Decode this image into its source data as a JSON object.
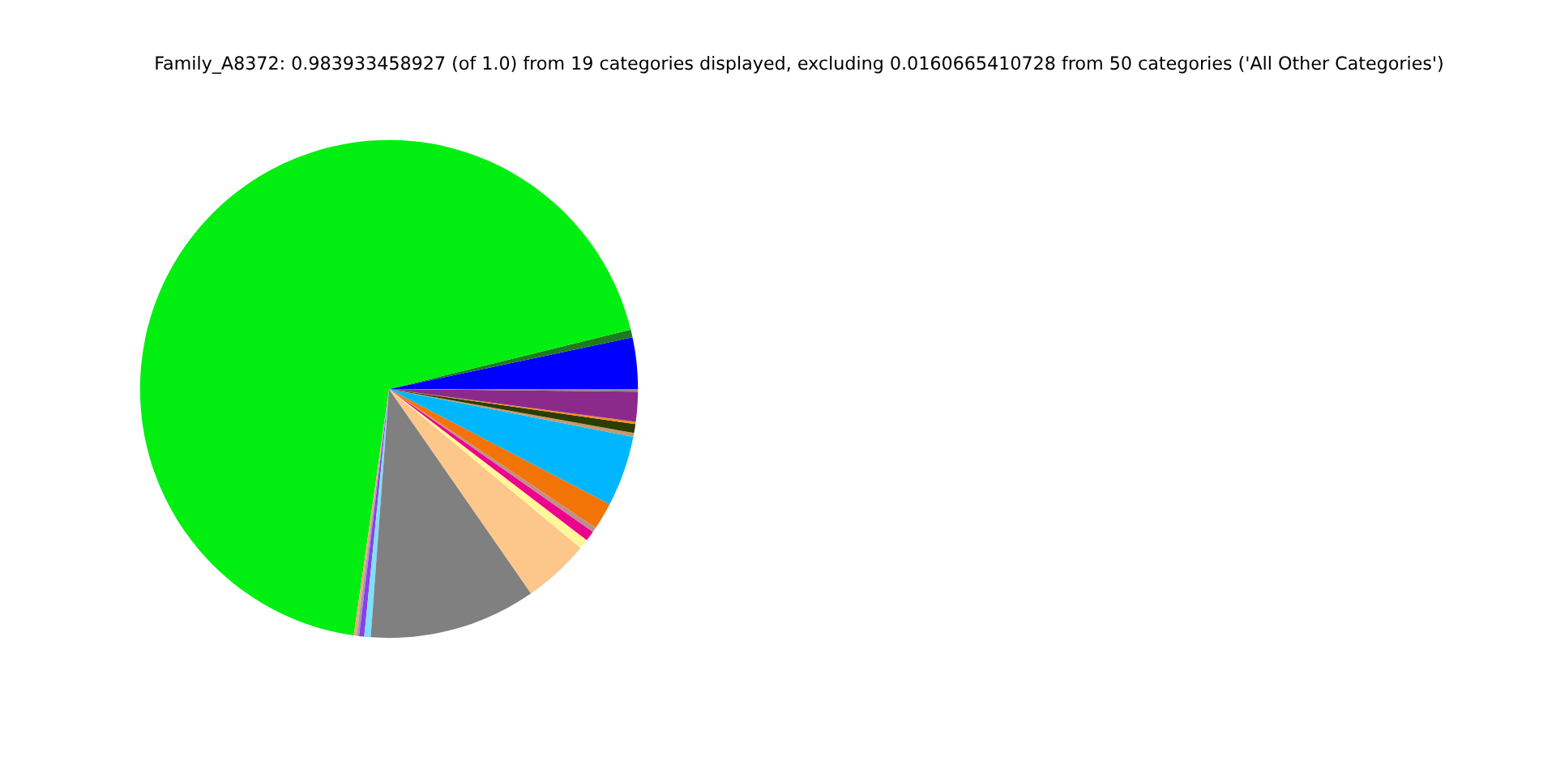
{
  "chart_data": {
    "type": "pie",
    "title": "Family_A8372: 0.983933458927 (of 1.0) from 19 categories displayed, excluding 0.0160665410728 from 50 categories ('All Other Categories')",
    "categories": [
      null,
      null,
      null,
      null,
      null,
      null,
      null,
      null,
      null,
      null,
      null,
      null,
      null,
      null,
      null,
      null,
      null,
      null,
      null
    ],
    "values": [
      3.33,
      0.5,
      68.91,
      0.17,
      0.17,
      0.33,
      0.42,
      10.83,
      4.31,
      0.64,
      0.67,
      0.31,
      1.75,
      4.58,
      0.25,
      0.58,
      0.14,
      1.94,
      0.17
    ],
    "colors": [
      "#0000ff",
      "#1f7a1f",
      "#00ef10",
      "#f4a582",
      "#a0a0a0",
      "#8b3cf0",
      "#7fdfff",
      "#808080",
      "#fdc68a",
      "#fff79a",
      "#ec008c",
      "#bc8f8f",
      "#f37406",
      "#00b7ff",
      "#c49a6c",
      "#2b3d00",
      "#f78c1e",
      "#8c2a8c",
      "#8a8a8a"
    ],
    "legend": false
  }
}
